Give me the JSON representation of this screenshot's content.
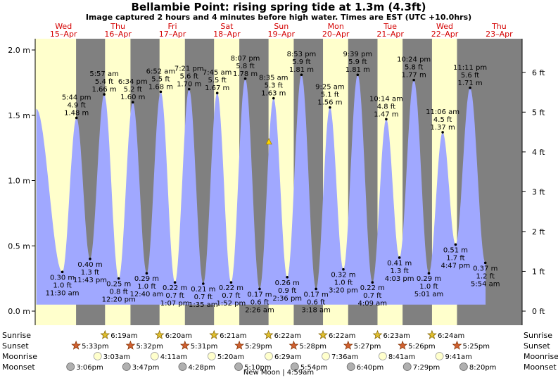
{
  "chart_data": {
    "type": "area",
    "title": "Bellambie Point: rising  spring tide at 1.3m (4.3ft)",
    "subtitle": "Image captured 2 hours and 4 minutes before high water. Times are EST (UTC +10.0hrs)",
    "ylabel_left_unit": "m",
    "ylabel_right_unit": "ft",
    "ylim": [
      -0.03,
      2.05
    ],
    "y_ticks_m": [
      "0.0 m",
      "0.5 m",
      "1.0 m",
      "1.5 m",
      "2.0 m"
    ],
    "y_ticks_ft": [
      "0 ft",
      "1 ft",
      "2 ft",
      "3 ft",
      "4 ft",
      "5 ft",
      "6 ft"
    ],
    "x_start": "2020-04-15 00:00",
    "days": [
      {
        "weekday": "Wed",
        "date": "15–Apr"
      },
      {
        "weekday": "Thu",
        "date": "16–Apr"
      },
      {
        "weekday": "Fri",
        "date": "17–Apr"
      },
      {
        "weekday": "Sat",
        "date": "18–Apr"
      },
      {
        "weekday": "Sun",
        "date": "19–Apr"
      },
      {
        "weekday": "Mon",
        "date": "20–Apr"
      },
      {
        "weekday": "Tue",
        "date": "21–Apr"
      },
      {
        "weekday": "Wed",
        "date": "22–Apr"
      },
      {
        "weekday": "Thu",
        "date": "23–Apr"
      }
    ],
    "series_start": {
      "time": "2020-04-15 00:00",
      "height_m": 1.55
    },
    "series_end": {
      "time": "2020-04-23 06:00",
      "height_m": 0.36
    },
    "tides": [
      {
        "time": "2020-04-15 11:30",
        "label": "11:30 am",
        "m": 0.3,
        "m_label": "0.30 m",
        "ft_label": "1.0 ft",
        "type": "low"
      },
      {
        "time": "2020-04-15 17:44",
        "label": "5:44 pm",
        "m": 1.48,
        "m_label": "1.48 m",
        "ft_label": "4.9 ft",
        "type": "high"
      },
      {
        "time": "2020-04-15 23:43",
        "label": "11:43 pm",
        "m": 0.4,
        "m_label": "0.40 m",
        "ft_label": "1.3 ft",
        "type": "low"
      },
      {
        "time": "2020-04-16 05:57",
        "label": "5:57 am",
        "m": 1.66,
        "m_label": "1.66 m",
        "ft_label": "5.4 ft",
        "type": "high"
      },
      {
        "time": "2020-04-16 12:20",
        "label": "12:20 pm",
        "m": 0.25,
        "m_label": "0.25 m",
        "ft_label": "0.8 ft",
        "type": "low"
      },
      {
        "time": "2020-04-16 18:34",
        "label": "6:34 pm",
        "m": 1.6,
        "m_label": "1.60 m",
        "ft_label": "5.2 ft",
        "type": "high"
      },
      {
        "time": "2020-04-17 00:40",
        "label": "12:40 am",
        "m": 0.29,
        "m_label": "0.29 m",
        "ft_label": "1.0 ft",
        "type": "low"
      },
      {
        "time": "2020-04-17 06:52",
        "label": "6:52 am",
        "m": 1.68,
        "m_label": "1.68 m",
        "ft_label": "5.5 ft",
        "type": "high"
      },
      {
        "time": "2020-04-17 13:07",
        "label": "1:07 pm",
        "m": 0.22,
        "m_label": "0.22 m",
        "ft_label": "0.7 ft",
        "type": "low"
      },
      {
        "time": "2020-04-17 19:21",
        "label": "7:21 pm",
        "m": 1.7,
        "m_label": "1.70 m",
        "ft_label": "5.6 ft",
        "type": "high"
      },
      {
        "time": "2020-04-18 01:35",
        "label": "1:35 am",
        "m": 0.21,
        "m_label": "0.21 m",
        "ft_label": "0.7 ft",
        "type": "low"
      },
      {
        "time": "2020-04-18 07:45",
        "label": "7:45 am",
        "m": 1.67,
        "m_label": "1.67 m",
        "ft_label": "5.5 ft",
        "type": "high"
      },
      {
        "time": "2020-04-18 13:52",
        "label": "1:52 pm",
        "m": 0.22,
        "m_label": "0.22 m",
        "ft_label": "0.7 ft",
        "type": "low"
      },
      {
        "time": "2020-04-18 20:07",
        "label": "8:07 pm",
        "m": 1.78,
        "m_label": "1.78 m",
        "ft_label": "5.8 ft",
        "type": "high"
      },
      {
        "time": "2020-04-19 02:26",
        "label": "2:26 am",
        "m": 0.17,
        "m_label": "0.17 m",
        "ft_label": "0.6 ft",
        "type": "low"
      },
      {
        "time": "2020-04-19 08:35",
        "label": "8:35 am",
        "m": 1.63,
        "m_label": "1.63 m",
        "ft_label": "5.3 ft",
        "type": "high"
      },
      {
        "time": "2020-04-19 14:36",
        "label": "2:36 pm",
        "m": 0.26,
        "m_label": "0.26 m",
        "ft_label": "0.9 ft",
        "type": "low"
      },
      {
        "time": "2020-04-19 20:53",
        "label": "8:53 pm",
        "m": 1.81,
        "m_label": "1.81 m",
        "ft_label": "5.9 ft",
        "type": "high"
      },
      {
        "time": "2020-04-20 03:18",
        "label": "3:18 am",
        "m": 0.17,
        "m_label": "0.17 m",
        "ft_label": "0.6 ft",
        "type": "low"
      },
      {
        "time": "2020-04-20 09:25",
        "label": "9:25 am",
        "m": 1.56,
        "m_label": "1.56 m",
        "ft_label": "5.1 ft",
        "type": "high"
      },
      {
        "time": "2020-04-20 15:20",
        "label": "3:20 pm",
        "m": 0.32,
        "m_label": "0.32 m",
        "ft_label": "1.0 ft",
        "type": "low"
      },
      {
        "time": "2020-04-20 21:39",
        "label": "9:39 pm",
        "m": 1.81,
        "m_label": "1.81 m",
        "ft_label": "5.9 ft",
        "type": "high"
      },
      {
        "time": "2020-04-21 04:09",
        "label": "4:09 am",
        "m": 0.22,
        "m_label": "0.22 m",
        "ft_label": "0.7 ft",
        "type": "low"
      },
      {
        "time": "2020-04-21 10:14",
        "label": "10:14 am",
        "m": 1.47,
        "m_label": "1.47 m",
        "ft_label": "4.8 ft",
        "type": "high"
      },
      {
        "time": "2020-04-21 16:03",
        "label": "4:03 pm",
        "m": 0.41,
        "m_label": "0.41 m",
        "ft_label": "1.3 ft",
        "type": "low"
      },
      {
        "time": "2020-04-21 22:24",
        "label": "10:24 pm",
        "m": 1.77,
        "m_label": "1.77 m",
        "ft_label": "5.8 ft",
        "type": "high"
      },
      {
        "time": "2020-04-22 05:01",
        "label": "5:01 am",
        "m": 0.29,
        "m_label": "0.29 m",
        "ft_label": "1.0 ft",
        "type": "low"
      },
      {
        "time": "2020-04-22 11:06",
        "label": "11:06 am",
        "m": 1.37,
        "m_label": "1.37 m",
        "ft_label": "4.5 ft",
        "type": "high"
      },
      {
        "time": "2020-04-22 16:47",
        "label": "4:47 pm",
        "m": 0.51,
        "m_label": "0.51 m",
        "ft_label": "1.7 ft",
        "type": "low"
      },
      {
        "time": "2020-04-22 23:11",
        "label": "11:11 pm",
        "m": 1.71,
        "m_label": "1.71 m",
        "ft_label": "5.6 ft",
        "type": "high"
      },
      {
        "time": "2020-04-23 05:54",
        "label": "5:54 am",
        "m": 0.37,
        "m_label": "0.37 m",
        "ft_label": "1.2 ft",
        "type": "low"
      }
    ],
    "current": {
      "time": "2020-04-19 06:31",
      "height_m": 1.3
    },
    "sunrise": [
      "6:19am",
      "6:20am",
      "6:21am",
      "6:22am",
      "6:22am",
      "6:23am",
      "6:24am"
    ],
    "sunset": [
      "5:33pm",
      "5:32pm",
      "5:31pm",
      "5:29pm",
      "5:28pm",
      "5:27pm",
      "5:26pm",
      "5:25pm"
    ],
    "moonrise": [
      "3:03am",
      "4:11am",
      "5:20am",
      "6:29am",
      "7:36am",
      "8:41am",
      "9:41am"
    ],
    "moonset": [
      "3:06pm",
      "3:47pm",
      "4:28pm",
      "5:10pm",
      "5:54pm",
      "6:40pm",
      "7:29pm",
      "8:20pm"
    ],
    "new_moon_note": "New Moon | 4:59am",
    "row_labels": {
      "sunrise": "Sunrise",
      "sunset": "Sunset",
      "moonrise": "Moonrise",
      "moonset": "Moonset"
    },
    "colors": {
      "day": "#ffffcc",
      "night": "#808080",
      "water": "#a0a8ff",
      "day_label": "#d40000",
      "sun": "#e0c030",
      "sunset_star": "#d06030",
      "moonrise": "#ffffcc",
      "moonset": "#b0b0b0"
    }
  }
}
